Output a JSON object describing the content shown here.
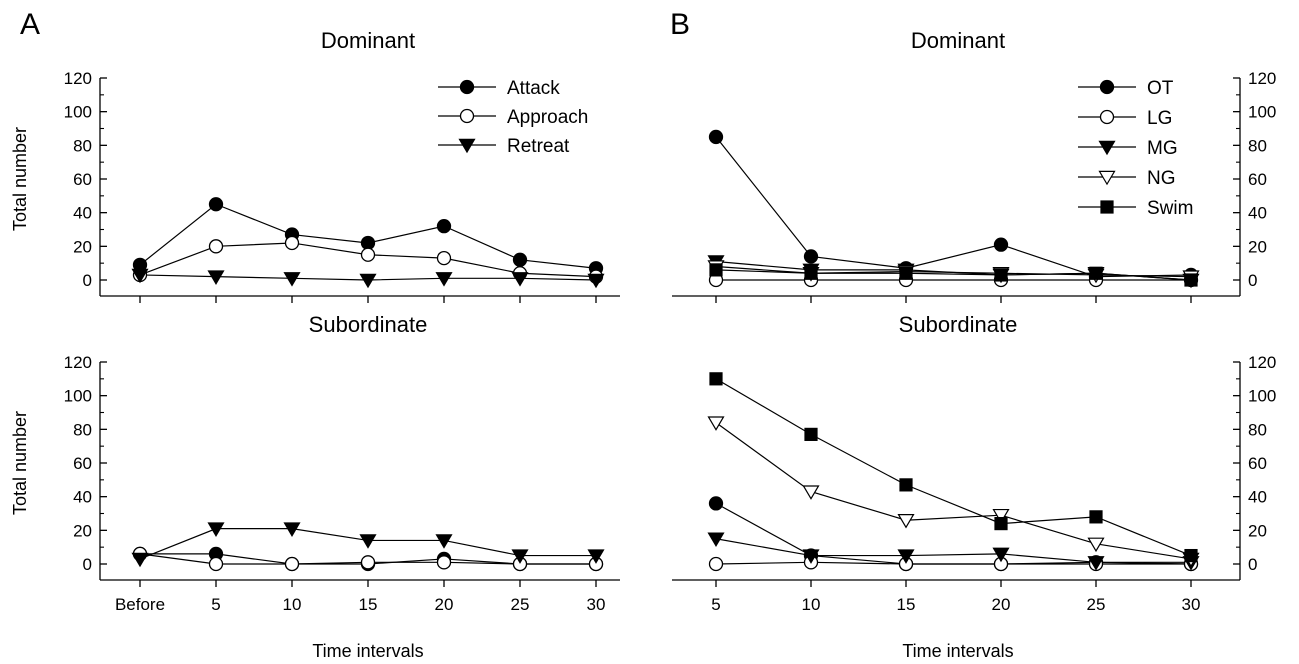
{
  "figure": {
    "panel_letters": [
      "A",
      "B"
    ],
    "x_axis_title": "Time intervals",
    "y_axis_title": "Total number"
  },
  "chart_data": [
    {
      "id": "A-top",
      "type": "line",
      "panel": "A",
      "title": "Dominant",
      "xlabel": "",
      "ylabel": "Total number",
      "x": [
        "Before",
        "5",
        "10",
        "15",
        "20",
        "25",
        "30"
      ],
      "ylim": [
        0,
        120
      ],
      "yticks": [
        0,
        20,
        40,
        60,
        80,
        100,
        120
      ],
      "yaxis_side": "left",
      "show_xtick_labels": false,
      "legend_position": "top-right",
      "series": [
        {
          "name": "Attack",
          "marker": "filled-circle",
          "values": [
            9,
            45,
            27,
            22,
            32,
            12,
            7
          ]
        },
        {
          "name": "Approach",
          "marker": "open-circle",
          "values": [
            3,
            20,
            22,
            15,
            13,
            4,
            2
          ]
        },
        {
          "name": "Retreat",
          "marker": "filled-triangle-down",
          "values": [
            3,
            2,
            1,
            0,
            1,
            1,
            0
          ]
        }
      ]
    },
    {
      "id": "A-bottom",
      "type": "line",
      "panel": "A",
      "title": "Subordinate",
      "xlabel": "Time intervals",
      "ylabel": "Total number",
      "x": [
        "Before",
        "5",
        "10",
        "15",
        "20",
        "25",
        "30"
      ],
      "ylim": [
        0,
        120
      ],
      "yticks": [
        0,
        20,
        40,
        60,
        80,
        100,
        120
      ],
      "yaxis_side": "left",
      "show_xtick_labels": true,
      "legend_position": "none",
      "series": [
        {
          "name": "Attack",
          "marker": "filled-circle",
          "values": [
            6,
            6,
            0,
            0,
            3,
            0,
            0
          ]
        },
        {
          "name": "Approach",
          "marker": "open-circle",
          "values": [
            6,
            0,
            0,
            1,
            1,
            0,
            0
          ]
        },
        {
          "name": "Retreat",
          "marker": "filled-triangle-down",
          "values": [
            3,
            21,
            21,
            14,
            14,
            5,
            5
          ]
        }
      ]
    },
    {
      "id": "B-top",
      "type": "line",
      "panel": "B",
      "title": "Dominant",
      "xlabel": "",
      "ylabel": "",
      "x": [
        "5",
        "10",
        "15",
        "20",
        "25",
        "30"
      ],
      "ylim": [
        0,
        120
      ],
      "yticks": [
        0,
        20,
        40,
        60,
        80,
        100,
        120
      ],
      "yaxis_side": "right",
      "show_xtick_labels": false,
      "legend_position": "top-right",
      "series": [
        {
          "name": "OT",
          "marker": "filled-circle",
          "values": [
            85,
            14,
            7,
            21,
            2,
            3
          ]
        },
        {
          "name": "LG",
          "marker": "open-circle",
          "values": [
            0,
            0,
            0,
            0,
            0,
            0
          ]
        },
        {
          "name": "MG",
          "marker": "filled-triangle-down",
          "values": [
            11,
            6,
            6,
            3,
            4,
            0
          ]
        },
        {
          "name": "NG",
          "marker": "open-triangle-down",
          "values": [
            8,
            4,
            5,
            4,
            3,
            2
          ]
        },
        {
          "name": "Swim",
          "marker": "filled-square",
          "values": [
            6,
            4,
            4,
            3,
            4,
            0
          ]
        }
      ]
    },
    {
      "id": "B-bottom",
      "type": "line",
      "panel": "B",
      "title": "Subordinate",
      "xlabel": "Time intervals",
      "ylabel": "",
      "x": [
        "5",
        "10",
        "15",
        "20",
        "25",
        "30"
      ],
      "ylim": [
        0,
        120
      ],
      "yticks": [
        0,
        20,
        40,
        60,
        80,
        100,
        120
      ],
      "yaxis_side": "right",
      "show_xtick_labels": true,
      "legend_position": "none",
      "series": [
        {
          "name": "OT",
          "marker": "filled-circle",
          "values": [
            36,
            5,
            0,
            0,
            1,
            0
          ]
        },
        {
          "name": "LG",
          "marker": "open-circle",
          "values": [
            0,
            1,
            0,
            0,
            0,
            0
          ]
        },
        {
          "name": "MG",
          "marker": "filled-triangle-down",
          "values": [
            15,
            5,
            5,
            6,
            1,
            1
          ]
        },
        {
          "name": "NG",
          "marker": "open-triangle-down",
          "values": [
            84,
            43,
            26,
            29,
            12,
            3
          ]
        },
        {
          "name": "Swim",
          "marker": "filled-square",
          "values": [
            110,
            77,
            47,
            24,
            28,
            5
          ]
        }
      ]
    }
  ]
}
